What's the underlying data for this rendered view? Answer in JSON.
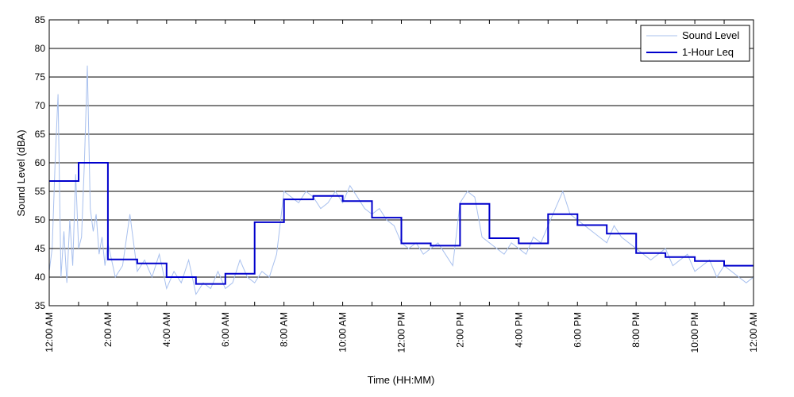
{
  "chart_data": {
    "type": "line",
    "title": "",
    "xlabel": "Time (HH:MM)",
    "ylabel": "Sound Level (dBA)",
    "ylim": [
      35,
      85
    ],
    "yticks": [
      35,
      40,
      45,
      50,
      55,
      60,
      65,
      70,
      75,
      80,
      85
    ],
    "xlim_hours": [
      0,
      24
    ],
    "x_tick_hours": [
      0,
      2,
      4,
      6,
      8,
      10,
      12,
      14,
      16,
      18,
      20,
      22,
      24
    ],
    "x_tick_labels": [
      "12:00 AM",
      "2:00 AM",
      "4:00 AM",
      "6:00 AM",
      "8:00 AM",
      "10:00 AM",
      "12:00 PM",
      "2:00 PM",
      "4:00 PM",
      "6:00 PM",
      "8:00 PM",
      "10:00 PM",
      "12:00 AM"
    ],
    "grid": "horizontal",
    "legend_position": "top-right",
    "series": [
      {
        "name": "Sound Level",
        "color": "#a8c0ee",
        "style": "thin-line",
        "x_hours": [
          0,
          0.1,
          0.2,
          0.3,
          0.4,
          0.5,
          0.6,
          0.7,
          0.8,
          0.9,
          1.0,
          1.1,
          1.2,
          1.3,
          1.4,
          1.5,
          1.6,
          1.7,
          1.8,
          1.9,
          2.0,
          2.25,
          2.5,
          2.75,
          3.0,
          3.25,
          3.5,
          3.75,
          4.0,
          4.25,
          4.5,
          4.75,
          5.0,
          5.25,
          5.5,
          5.75,
          6.0,
          6.25,
          6.5,
          6.75,
          7.0,
          7.25,
          7.5,
          7.75,
          8.0,
          8.25,
          8.5,
          8.75,
          9.0,
          9.25,
          9.5,
          9.75,
          10.0,
          10.25,
          10.5,
          10.75,
          11.0,
          11.25,
          11.5,
          11.75,
          12.0,
          12.25,
          12.5,
          12.75,
          13.0,
          13.25,
          13.5,
          13.75,
          14.0,
          14.25,
          14.5,
          14.75,
          15.0,
          15.25,
          15.5,
          15.75,
          16.0,
          16.25,
          16.5,
          16.75,
          17.0,
          17.25,
          17.5,
          17.75,
          18.0,
          18.25,
          18.5,
          18.75,
          19.0,
          19.25,
          19.5,
          19.75,
          20.0,
          20.25,
          20.5,
          20.75,
          21.0,
          21.25,
          21.5,
          21.75,
          22.0,
          22.25,
          22.5,
          22.75,
          23.0,
          23.25,
          23.5,
          23.75,
          24.0
        ],
        "values": [
          41,
          45,
          60,
          72,
          40,
          48,
          39,
          50,
          42,
          58,
          45,
          47,
          60,
          77,
          52,
          48,
          51,
          44,
          47,
          42,
          46,
          40,
          42,
          51,
          41,
          43,
          40,
          44,
          38,
          41,
          39,
          43,
          37,
          39,
          38,
          41,
          38,
          39,
          43,
          40,
          39,
          41,
          40,
          44,
          55,
          54,
          53,
          55,
          54,
          52,
          53,
          55,
          53,
          56,
          54,
          52,
          51,
          52,
          50,
          49,
          46,
          45,
          46,
          44,
          45,
          46,
          44,
          42,
          53,
          55,
          54,
          47,
          46,
          45,
          44,
          46,
          45,
          44,
          47,
          46,
          49,
          52,
          55,
          51,
          50,
          49,
          48,
          47,
          46,
          49,
          47,
          46,
          45,
          44,
          43,
          44,
          45,
          42,
          43,
          44,
          41,
          42,
          43,
          40,
          42,
          41,
          40,
          39,
          40
        ]
      },
      {
        "name": "1-Hour Leq",
        "color": "#0000cc",
        "style": "step",
        "hourly_values": [
          56.8,
          60.0,
          43.1,
          42.4,
          40.0,
          38.8,
          40.6,
          49.6,
          53.6,
          54.2,
          53.3,
          50.4,
          45.9,
          45.5,
          52.8,
          46.8,
          45.9,
          51.0,
          49.1,
          47.6,
          44.2,
          43.5,
          42.8,
          42.0
        ]
      }
    ]
  }
}
